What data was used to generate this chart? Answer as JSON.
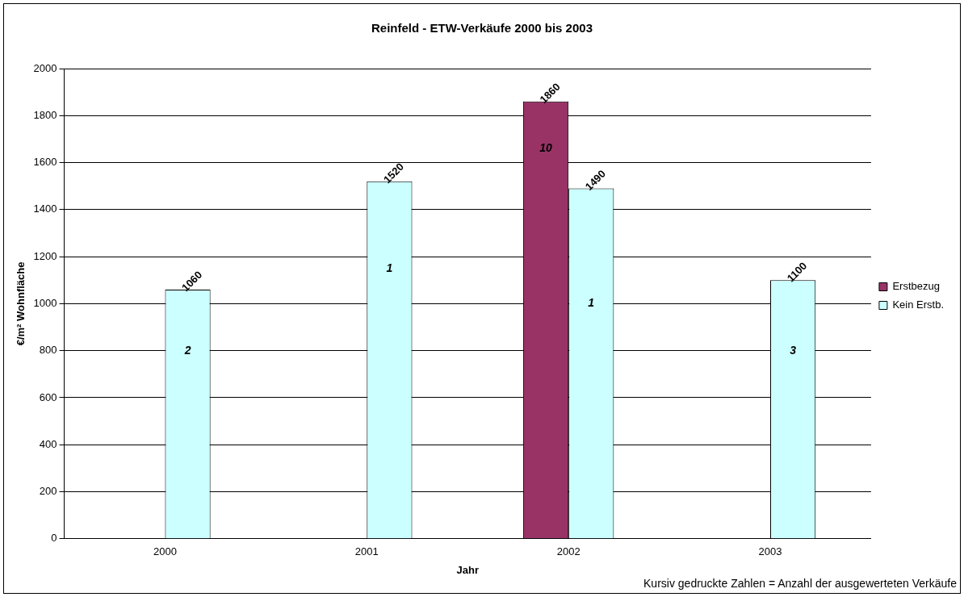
{
  "chart_data": {
    "type": "bar",
    "title": "Reinfeld - ETW-Verkäufe 2000 bis 2003",
    "xlabel": "Jahr",
    "ylabel": "€/m² Wohnfläche",
    "categories": [
      "2000",
      "2001",
      "2002",
      "2003"
    ],
    "series": [
      {
        "name": "Erstbezug",
        "color": "#993366",
        "values": [
          null,
          null,
          1860,
          null
        ]
      },
      {
        "name": "Kein Erstb.",
        "color": "#ccffff",
        "values": [
          1060,
          1520,
          1490,
          1100
        ]
      }
    ],
    "ylim": [
      0,
      2000
    ],
    "yticks": [
      0,
      200,
      400,
      600,
      800,
      1000,
      1200,
      1400,
      1600,
      1800,
      2000
    ],
    "grid": "y",
    "legend": "right",
    "data_labels": true,
    "annotations": [
      {
        "text": "2",
        "x": "2000",
        "y": 800
      },
      {
        "text": "1",
        "x": "2001",
        "y": 1150
      },
      {
        "text": "10",
        "x": "2002",
        "y": 1660
      },
      {
        "text": "1",
        "x": "2002",
        "y": 1000
      },
      {
        "text": "3",
        "x": "2003",
        "y": 800
      },
      "Kursiv gedruckte Zahlen = Anzahl der ausgewerteten Verkäufe"
    ]
  }
}
